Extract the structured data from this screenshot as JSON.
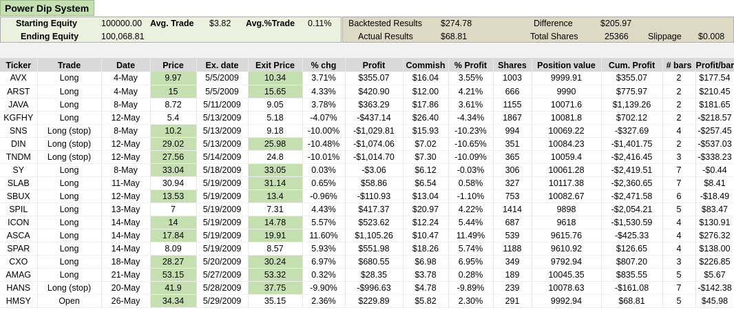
{
  "title": "Power Dip System",
  "summary": {
    "starting_equity_label": "Starting Equity",
    "starting_equity": "100000.00",
    "avg_trade_label": "Avg. Trade",
    "avg_trade": "$3.82",
    "avg_pct_trade_label": "Avg.%Trade",
    "avg_pct_trade": "0.11%",
    "ending_equity_label": "Ending Equity",
    "ending_equity": "100,068.81",
    "backtested_label": "Backtested Results",
    "backtested": "$274.78",
    "actual_label": "Actual Results",
    "actual": "$68.81",
    "difference_label": "Difference",
    "difference": "$205.97",
    "total_shares_label": "Total Shares",
    "total_shares": "25366",
    "slippage_label": "Slippage",
    "slippage": "$0.008"
  },
  "columns": [
    "Ticker",
    "Trade",
    "Date",
    "Price",
    "Ex. date",
    "Exit Price",
    "% chg",
    "Profit",
    "Commish",
    "% Profit",
    "Shares",
    "Position value",
    "Cum. Profit",
    "# bars",
    "Profit/bar"
  ],
  "rows": [
    {
      "c": [
        "AVX",
        "Long",
        "4-May",
        "9.97",
        "5/5/2009",
        "10.34",
        "3.71%",
        "$355.07",
        "$16.04",
        "3.55%",
        "1003",
        "9999.91",
        "$355.07",
        "2",
        "$177.54"
      ],
      "hp": true,
      "he": true
    },
    {
      "c": [
        "ARST",
        "Long",
        "4-May",
        "15",
        "5/5/2009",
        "15.65",
        "4.33%",
        "$420.90",
        "$12.00",
        "4.21%",
        "666",
        "9990",
        "$775.97",
        "2",
        "$210.45"
      ],
      "hp": true,
      "he": true
    },
    {
      "c": [
        "JAVA",
        "Long",
        "8-May",
        "8.72",
        "5/11/2009",
        "9.05",
        "3.78%",
        "$363.29",
        "$17.86",
        "3.61%",
        "1155",
        "10071.6",
        "$1,139.26",
        "2",
        "$181.65"
      ],
      "hp": false,
      "he": false
    },
    {
      "c": [
        "KGFHY",
        "Long",
        "12-May",
        "5.4",
        "5/13/2009",
        "5.18",
        "-4.07%",
        "-$437.14",
        "$26.40",
        "-4.34%",
        "1867",
        "10081.8",
        "$702.12",
        "2",
        "-$218.57"
      ],
      "hp": false,
      "he": false
    },
    {
      "c": [
        "SNS",
        "Long (stop)",
        "8-May",
        "10.2",
        "5/13/2009",
        "9.18",
        "-10.00%",
        "-$1,029.81",
        "$15.93",
        "-10.23%",
        "994",
        "10069.22",
        "-$327.69",
        "4",
        "-$257.45"
      ],
      "hp": true,
      "he": false
    },
    {
      "c": [
        "DIN",
        "Long (stop)",
        "12-May",
        "29.02",
        "5/13/2009",
        "25.98",
        "-10.48%",
        "-$1,074.06",
        "$7.02",
        "-10.65%",
        "351",
        "10084.23",
        "-$1,401.75",
        "2",
        "-$537.03"
      ],
      "hp": true,
      "he": true
    },
    {
      "c": [
        "TNDM",
        "Long (stop)",
        "12-May",
        "27.56",
        "5/14/2009",
        "24.8",
        "-10.01%",
        "-$1,014.70",
        "$7.30",
        "-10.09%",
        "365",
        "10059.4",
        "-$2,416.45",
        "3",
        "-$338.23"
      ],
      "hp": true,
      "he": false
    },
    {
      "c": [
        "SY",
        "Long",
        "8-May",
        "33.04",
        "5/18/2009",
        "33.05",
        "0.03%",
        "-$3.06",
        "$6.12",
        "-0.03%",
        "306",
        "10061.28",
        "-$2,419.51",
        "7",
        "-$0.44"
      ],
      "hp": true,
      "he": true
    },
    {
      "c": [
        "SLAB",
        "Long",
        "11-May",
        "30.94",
        "5/19/2009",
        "31.14",
        "0.65%",
        "$58.86",
        "$6.54",
        "0.58%",
        "327",
        "10117.38",
        "-$2,360.65",
        "7",
        "$8.41"
      ],
      "hp": false,
      "he": true
    },
    {
      "c": [
        "SBUX",
        "Long",
        "12-May",
        "13.53",
        "5/19/2009",
        "13.4",
        "-0.96%",
        "-$110.93",
        "$13.04",
        "-1.10%",
        "753",
        "10082.67",
        "-$2,471.58",
        "6",
        "-$18.49"
      ],
      "hp": true,
      "he": true
    },
    {
      "c": [
        "SPIL",
        "Long",
        "13-May",
        "7",
        "5/19/2009",
        "7.31",
        "4.43%",
        "$417.37",
        "$20.97",
        "4.22%",
        "1414",
        "9898",
        "-$2,054.21",
        "5",
        "$83.47"
      ],
      "hp": false,
      "he": false
    },
    {
      "c": [
        "ICON",
        "Long",
        "14-May",
        "14",
        "5/19/2009",
        "14.78",
        "5.57%",
        "$523.62",
        "$12.24",
        "5.44%",
        "687",
        "9618",
        "-$1,530.59",
        "4",
        "$130.91"
      ],
      "hp": true,
      "he": true
    },
    {
      "c": [
        "ASCA",
        "Long",
        "14-May",
        "17.84",
        "5/19/2009",
        "19.91",
        "11.60%",
        "$1,105.26",
        "$10.47",
        "11.49%",
        "539",
        "9615.76",
        "-$425.33",
        "4",
        "$276.32"
      ],
      "hp": true,
      "he": true
    },
    {
      "c": [
        "SPAR",
        "Long",
        "14-May",
        "8.09",
        "5/19/2009",
        "8.57",
        "5.93%",
        "$551.98",
        "$18.26",
        "5.74%",
        "1188",
        "9610.92",
        "$126.65",
        "4",
        "$138.00"
      ],
      "hp": false,
      "he": false
    },
    {
      "c": [
        "CXO",
        "Long",
        "18-May",
        "28.27",
        "5/20/2009",
        "30.24",
        "6.97%",
        "$680.55",
        "$6.98",
        "6.95%",
        "349",
        "9792.94",
        "$807.20",
        "3",
        "$226.85"
      ],
      "hp": true,
      "he": true
    },
    {
      "c": [
        "AMAG",
        "Long",
        "21-May",
        "53.15",
        "5/27/2009",
        "53.32",
        "0.32%",
        "$28.35",
        "$3.78",
        "0.28%",
        "189",
        "10045.35",
        "$835.55",
        "5",
        "$5.67"
      ],
      "hp": true,
      "he": true
    },
    {
      "c": [
        "HANS",
        "Long (stop)",
        "20-May",
        "41.9",
        "5/28/2009",
        "37.75",
        "-9.90%",
        "-$996.63",
        "$4.78",
        "-9.89%",
        "239",
        "10078.63",
        "-$161.08",
        "7",
        "-$142.38"
      ],
      "hp": true,
      "he": true
    },
    {
      "c": [
        "HMSY",
        "Open",
        "26-May",
        "34.34",
        "5/29/2009",
        "35.15",
        "2.36%",
        "$229.89",
        "$5.82",
        "2.30%",
        "291",
        "9992.94",
        "$68.81",
        "5",
        "$45.98"
      ],
      "hp": true,
      "he": false
    }
  ]
}
